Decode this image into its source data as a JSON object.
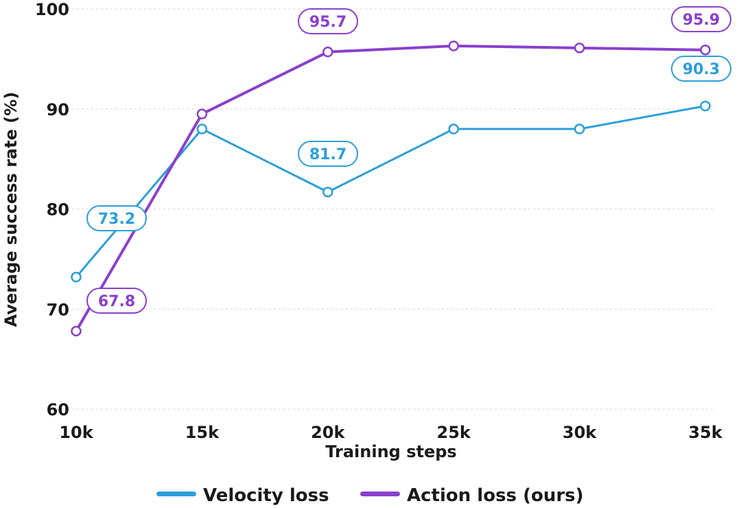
{
  "chart_data": {
    "type": "line",
    "xlabel": "Training steps",
    "ylabel": "Average success rate (%)",
    "categories": [
      "10k",
      "15k",
      "20k",
      "25k",
      "30k",
      "35k"
    ],
    "ylim": [
      60,
      100
    ],
    "yticks": [
      60,
      70,
      80,
      90,
      100
    ],
    "grid": "horizontal-dashed",
    "legend_position": "bottom",
    "series": [
      {
        "name": "Velocity loss",
        "color": "#2b9fd9",
        "values": [
          73.2,
          88.0,
          81.7,
          88.0,
          88.0,
          90.3
        ],
        "data_labels": [
          "73.2",
          "",
          "81.7",
          "",
          "",
          "90.3"
        ]
      },
      {
        "name": "Action loss (ours)",
        "color": "#8a3fcc",
        "values": [
          67.8,
          89.5,
          95.7,
          96.3,
          96.1,
          95.9
        ],
        "data_labels": [
          "67.8",
          "",
          "95.7",
          "",
          "",
          "95.9"
        ]
      }
    ]
  }
}
